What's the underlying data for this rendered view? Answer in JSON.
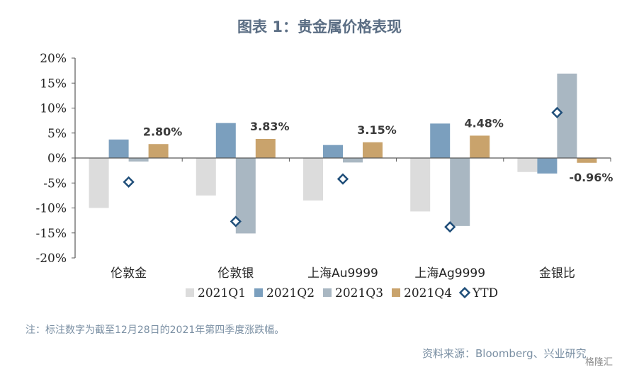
{
  "title": "图表 1：贵金属价格表现",
  "chart_data": {
    "type": "bar",
    "categories": [
      "伦敦金",
      "伦敦银",
      "上海Au9999",
      "上海Ag9999",
      "金银比"
    ],
    "series": [
      {
        "name": "2021Q1",
        "color": "#dcdcdc",
        "values": [
          -10.0,
          -7.5,
          -8.5,
          -10.7,
          -2.8
        ]
      },
      {
        "name": "2021Q2",
        "color": "#7b9fbe",
        "values": [
          3.7,
          7.0,
          2.6,
          6.9,
          -3.1
        ]
      },
      {
        "name": "2021Q3",
        "color": "#a9b7c2",
        "values": [
          -0.7,
          -15.1,
          -0.9,
          -13.6,
          16.9
        ]
      },
      {
        "name": "2021Q4",
        "color": "#c9a36c",
        "values": [
          2.8,
          3.83,
          3.15,
          4.48,
          -0.96
        ]
      }
    ],
    "ytd": {
      "name": "YTD",
      "color": "#1f4e79",
      "values": [
        -4.8,
        -12.7,
        -4.2,
        -13.8,
        9.1
      ]
    },
    "data_labels": [
      "2.80%",
      "3.83%",
      "3.15%",
      "4.48%",
      "-0.96%"
    ],
    "y_ticks": [
      "20%",
      "15%",
      "10%",
      "5%",
      "0%",
      "-5%",
      "-10%",
      "-15%",
      "-20%"
    ],
    "ylim": [
      -20,
      20
    ],
    "legend_position": "bottom"
  },
  "note": "注：标注数字为截至12月28日的2021年第四季度涨跌幅。",
  "source": "资料来源：Bloomberg、兴业研究",
  "watermark": "格隆汇"
}
